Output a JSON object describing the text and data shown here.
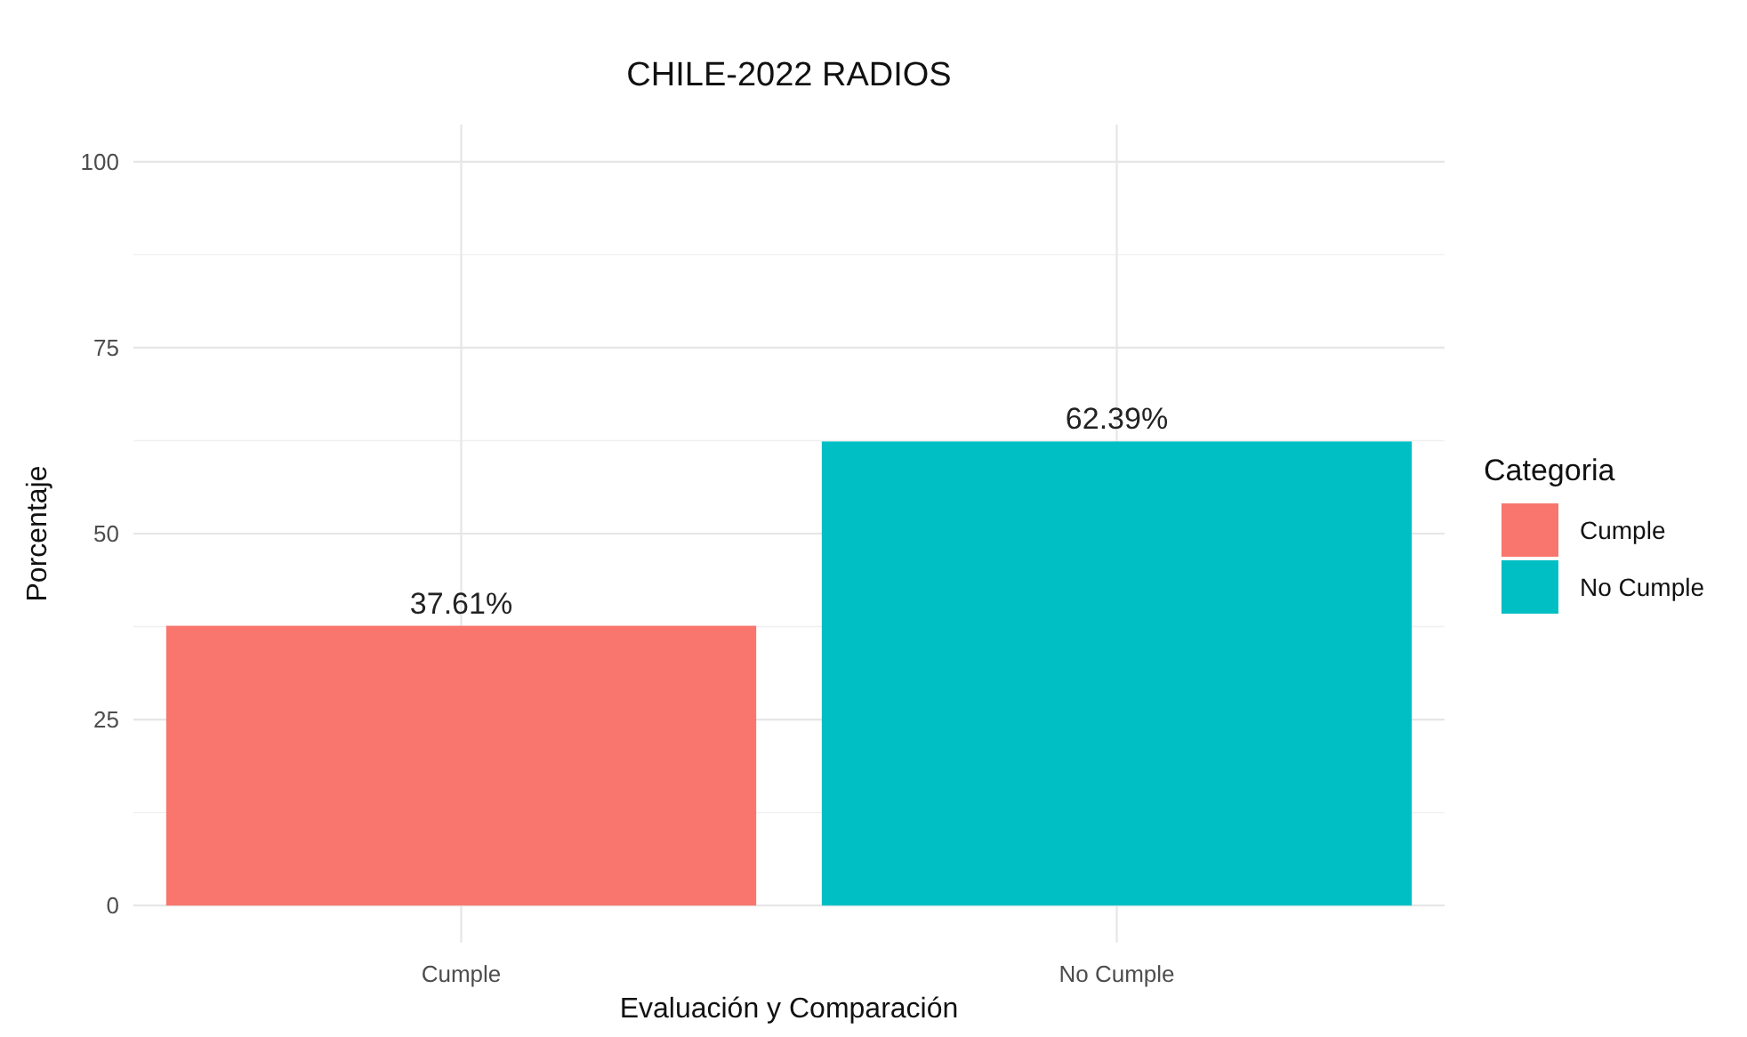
{
  "chart_data": {
    "type": "bar",
    "title": "CHILE-2022 RADIOS",
    "xlabel": "Evaluación y Comparación",
    "ylabel": "Porcentaje",
    "legend_title": "Categoria",
    "categories": [
      "Cumple",
      "No Cumple"
    ],
    "series": [
      {
        "name": "Cumple",
        "color": "#f8766d",
        "values": [
          37.61,
          null
        ]
      },
      {
        "name": "No Cumple",
        "color": "#00bfc4",
        "values": [
          null,
          62.39
        ]
      }
    ],
    "value_labels": [
      "37.61%",
      "62.39%"
    ],
    "ylim": [
      -5,
      105
    ],
    "yticks": [
      0,
      25,
      50,
      75,
      100
    ],
    "grid": true,
    "legend": "right"
  }
}
